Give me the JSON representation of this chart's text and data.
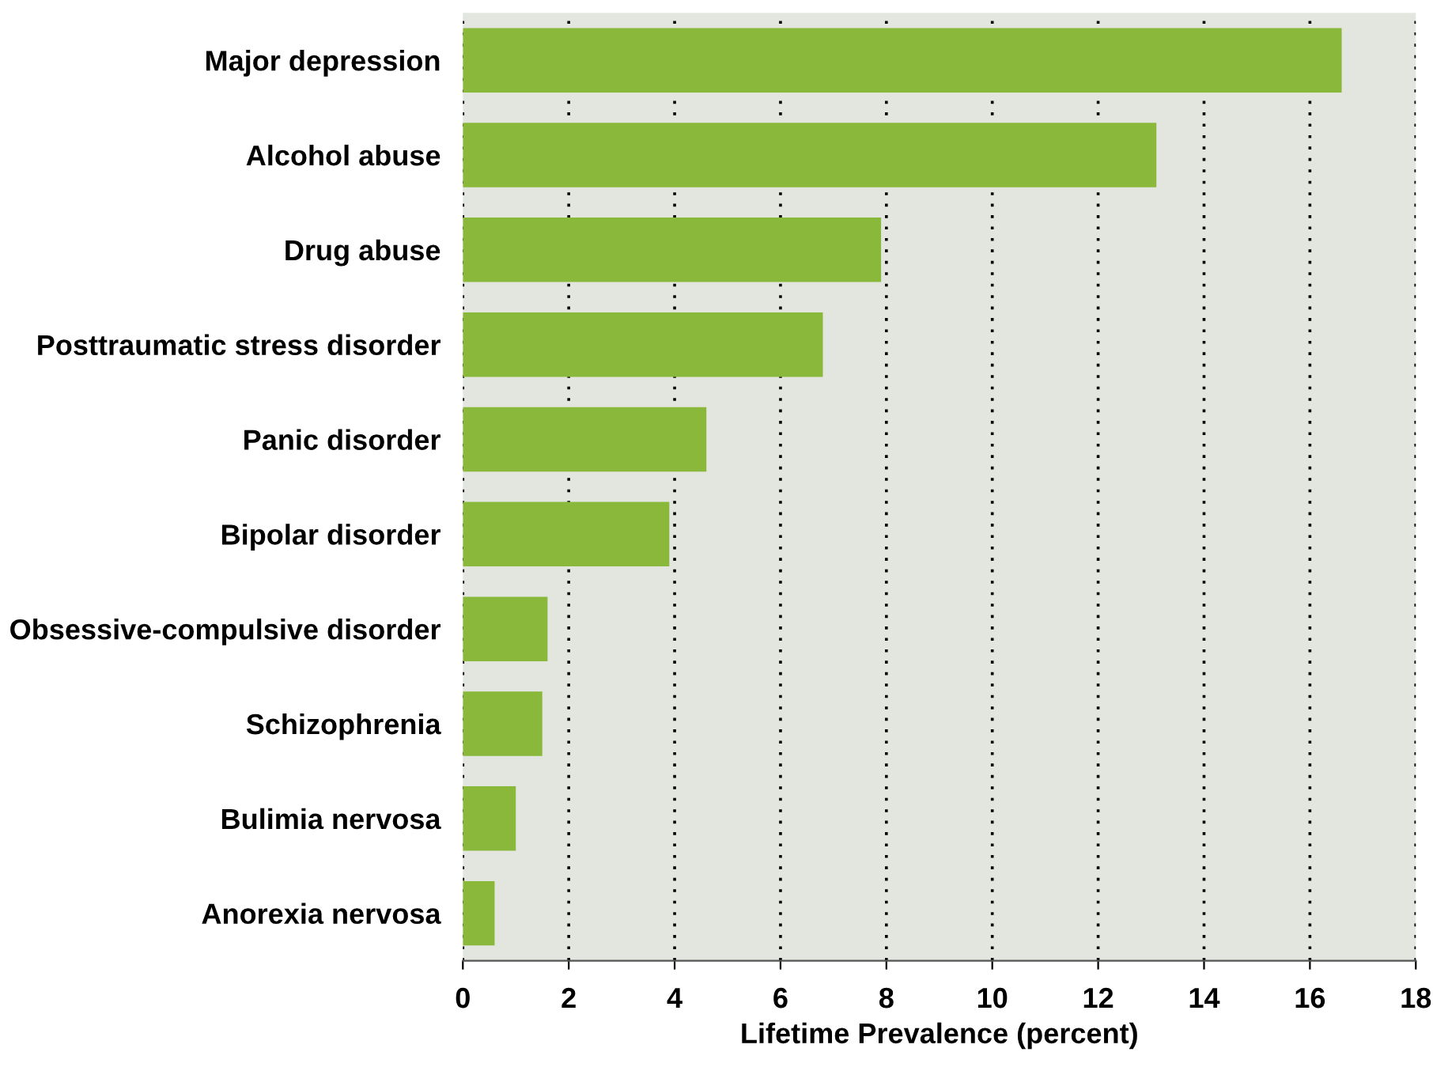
{
  "chart_data": {
    "type": "bar",
    "orientation": "horizontal",
    "xlabel": "Lifetime Prevalence (percent)",
    "categories": [
      "Major depression",
      "Alcohol abuse",
      "Drug abuse",
      "Posttraumatic stress disorder",
      "Panic disorder",
      "Bipolar disorder",
      "Obsessive-compulsive disorder",
      "Schizophrenia",
      "Bulimia nervosa",
      "Anorexia nervosa"
    ],
    "values": [
      16.6,
      13.1,
      7.9,
      6.8,
      4.6,
      3.9,
      1.6,
      1.5,
      1.0,
      0.6
    ],
    "color": "#8ab83a",
    "xlim": [
      0,
      18
    ],
    "xticks": [
      0,
      2,
      4,
      6,
      8,
      10,
      12,
      14,
      16,
      18
    ],
    "grid": "x",
    "legend": false
  }
}
